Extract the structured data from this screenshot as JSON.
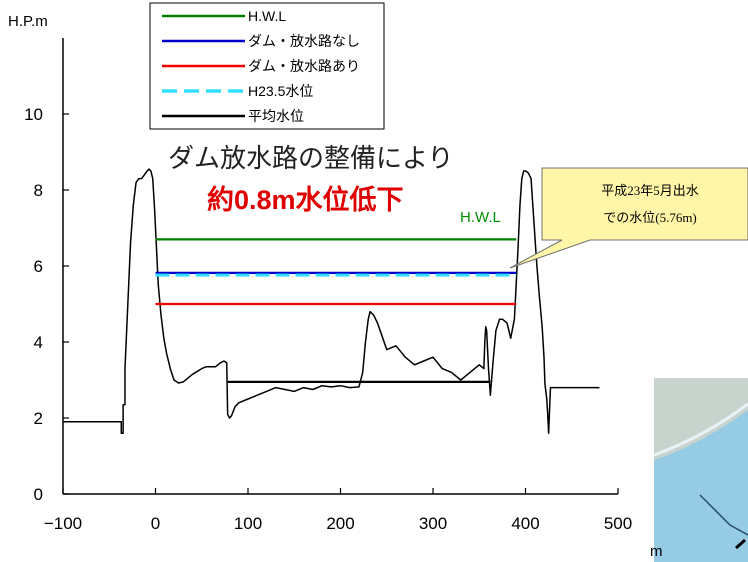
{
  "chart_data": {
    "type": "line",
    "ylabel": "H.P.m",
    "xlabel": "m",
    "xlim": [
      -100,
      500
    ],
    "ylim": [
      0,
      12
    ],
    "xticks": [
      -100,
      0,
      100,
      200,
      300,
      400,
      500
    ],
    "xtick_labels": [
      "−100",
      "0",
      "100",
      "200",
      "300",
      "400",
      "500"
    ],
    "yticks": [
      0,
      2,
      4,
      6,
      8,
      10
    ],
    "grid": false,
    "legend_position": "top-center",
    "series": [
      {
        "name": "H.W.L",
        "color": "#008000",
        "dash": false,
        "x": [
          0,
          390
        ],
        "y": [
          6.7,
          6.7
        ]
      },
      {
        "name": "ダム・放水路なし",
        "color": "#0000cc",
        "dash": false,
        "x": [
          0,
          390
        ],
        "y": [
          5.82,
          5.82
        ]
      },
      {
        "name": "ダム・放水路あり",
        "color": "#ee0000",
        "dash": false,
        "x": [
          0,
          390
        ],
        "y": [
          5.0,
          5.0
        ]
      },
      {
        "name": "H23.5水位",
        "color": "#33e0ff",
        "dash": true,
        "x": [
          0,
          390
        ],
        "y": [
          5.76,
          5.76
        ]
      },
      {
        "name": "平均水位",
        "color": "#000000",
        "dash": false,
        "x": [
          78,
          362
        ],
        "y": [
          2.95,
          2.95
        ]
      }
    ],
    "cross_section": {
      "color": "#000000",
      "x": [
        -100,
        -37,
        -37,
        -35,
        -35,
        -33,
        -33,
        -31,
        -29,
        -27,
        -24,
        -21,
        -18,
        -15,
        -12,
        -9,
        -7,
        -5,
        -3,
        -1,
        1,
        3,
        6,
        9,
        12,
        16,
        20,
        25,
        30,
        40,
        50,
        55,
        60,
        65,
        70,
        74,
        77,
        78,
        80,
        82,
        86,
        90,
        100,
        110,
        120,
        130,
        140,
        150,
        160,
        170,
        180,
        190,
        200,
        210,
        220,
        224,
        227,
        230,
        232,
        236,
        240,
        250,
        260,
        270,
        280,
        290,
        300,
        310,
        320,
        330,
        340,
        350,
        355,
        356,
        357,
        358,
        360,
        362,
        365,
        368,
        372,
        375,
        380,
        384,
        388,
        392,
        394,
        396,
        398,
        400,
        403,
        406,
        409,
        412,
        415,
        418,
        420,
        421,
        423,
        424,
        425,
        427,
        430,
        440,
        450,
        460,
        470,
        480
      ],
      "y": [
        1.9,
        1.9,
        1.6,
        1.6,
        2.35,
        2.35,
        3.3,
        4.4,
        5.5,
        6.6,
        7.6,
        8.2,
        8.3,
        8.3,
        8.4,
        8.5,
        8.55,
        8.5,
        8.3,
        7.5,
        6.5,
        5.5,
        4.7,
        4.1,
        3.7,
        3.3,
        3.0,
        2.92,
        2.95,
        3.15,
        3.3,
        3.35,
        3.35,
        3.35,
        3.45,
        3.5,
        3.45,
        2.1,
        2.0,
        2.05,
        2.3,
        2.4,
        2.5,
        2.6,
        2.7,
        2.8,
        2.75,
        2.7,
        2.8,
        2.75,
        2.85,
        2.82,
        2.85,
        2.8,
        2.82,
        3.2,
        4.0,
        4.6,
        4.8,
        4.7,
        4.5,
        3.8,
        3.9,
        3.6,
        3.4,
        3.5,
        3.6,
        3.3,
        3.2,
        3.0,
        3.2,
        3.4,
        3.3,
        4.0,
        4.4,
        4.3,
        3.3,
        2.6,
        3.5,
        4.3,
        4.6,
        4.6,
        4.5,
        4.1,
        4.6,
        6.5,
        7.6,
        8.3,
        8.5,
        8.5,
        8.45,
        8.3,
        7.2,
        6.1,
        5.2,
        4.4,
        3.6,
        2.9,
        2.5,
        2.1,
        1.6,
        2.8,
        2.8,
        2.8,
        2.8,
        2.8,
        2.8,
        2.8
      ]
    },
    "annotations": {
      "line1": "ダム放水路の整備により",
      "line2": "約0.8m水位低下",
      "hwl_label": "H.W.L",
      "callout_line1": "平成23年5月出水",
      "callout_line2": "での水位(5.76m)"
    },
    "callout_fill": "#fff6a8"
  }
}
